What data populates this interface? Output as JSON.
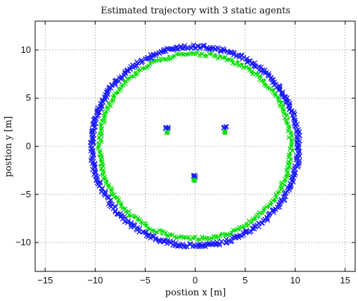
{
  "chart_data": {
    "type": "scatter",
    "title": "Estimated trajectory with 3 static agents",
    "xlabel": "postion x [m]",
    "ylabel": "postion y [m]",
    "xlim": [
      -16,
      16
    ],
    "ylim": [
      -13,
      13
    ],
    "xticks": [
      -15,
      -10,
      -5,
      0,
      5,
      10,
      15
    ],
    "yticks": [
      -10,
      -5,
      0,
      5,
      10
    ],
    "grid": true,
    "trajectory": {
      "shape": "circle",
      "center": [
        0,
        0
      ],
      "radius": 10
    },
    "static_agents": [
      {
        "x": -2.8,
        "y": 1.7
      },
      {
        "x": 3.0,
        "y": 1.7
      },
      {
        "x": -0.1,
        "y": -3.3
      }
    ],
    "series": [
      {
        "marker": "x",
        "color": "#1a1aff"
      },
      {
        "marker": "x",
        "color": "#00e000"
      },
      {
        "marker": "square",
        "color": "#00e000"
      }
    ]
  }
}
